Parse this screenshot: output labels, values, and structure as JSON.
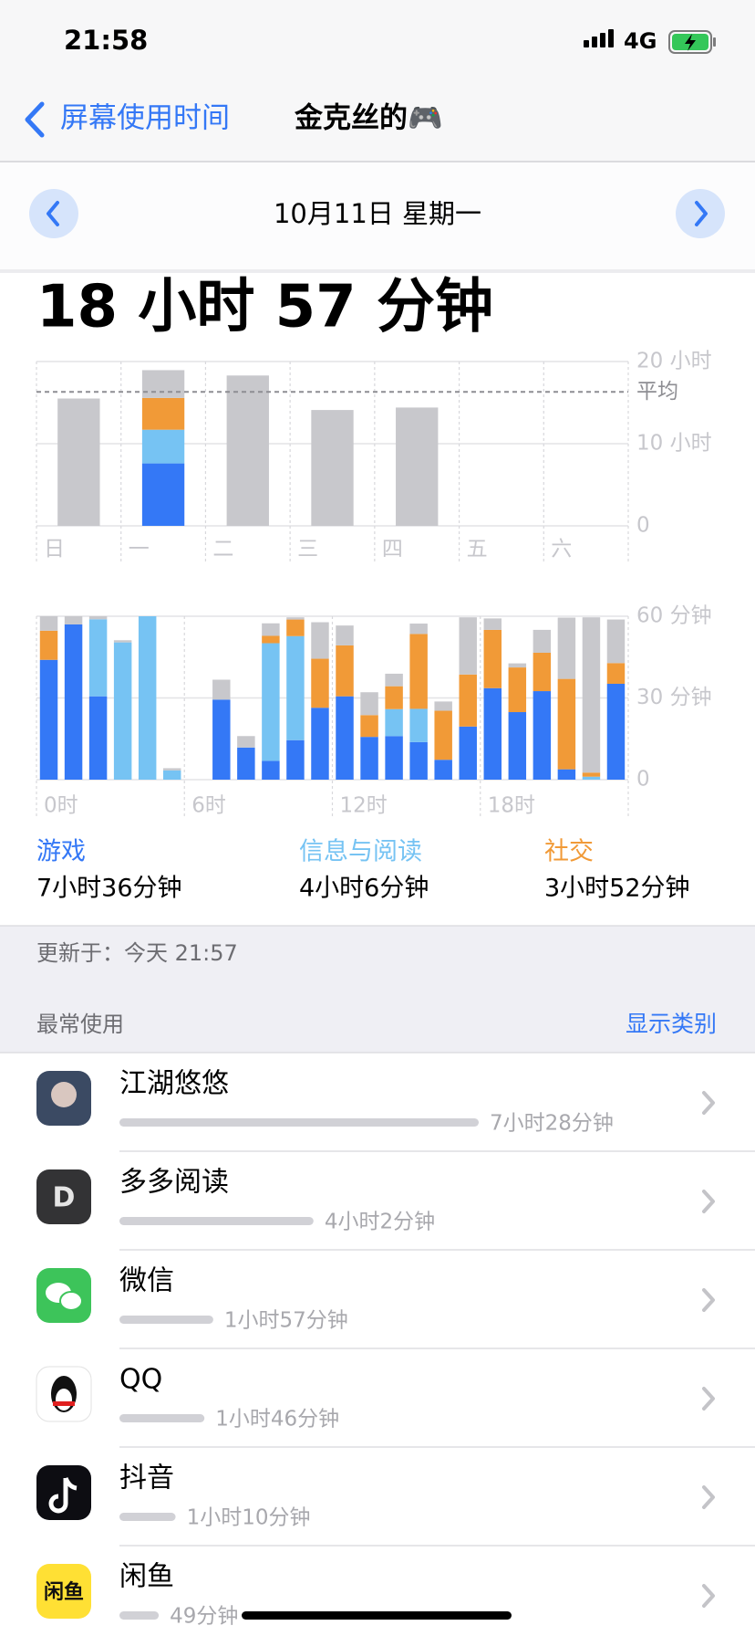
{
  "status_bar": {
    "time": "21:58",
    "network": "4G"
  },
  "nav": {
    "back": "屏幕使用时间",
    "title": "金克丝的🎮"
  },
  "date": "10月11日 星期一",
  "total": "18 小时 57 分钟",
  "chart_data": [
    {
      "type": "bar",
      "stacked": true,
      "categories": [
        "日",
        "一",
        "二",
        "三",
        "四",
        "五",
        "六"
      ],
      "series": [
        {
          "name": "游戏",
          "color": "#3478f6",
          "values": [
            null,
            7.6,
            null,
            null,
            null,
            null,
            null
          ]
        },
        {
          "name": "信息与阅读",
          "color": "#76c3f3",
          "values": [
            null,
            4.1,
            null,
            null,
            null,
            null,
            null
          ]
        },
        {
          "name": "社交",
          "color": "#f19a37",
          "values": [
            null,
            3.87,
            null,
            null,
            null,
            null,
            null
          ]
        },
        {
          "color": "#c8c8cc",
          "values": [
            15.5,
            3.38,
            18.3,
            14.1,
            14.4,
            null,
            null
          ]
        }
      ],
      "ylim": [
        0,
        20
      ],
      "yticks": [
        0,
        {
          "value": 10,
          "label": "10 小时"
        },
        {
          "value": 20,
          "label": "20 小时"
        }
      ],
      "average": 16.3,
      "average_label": "平均",
      "grid": true
    },
    {
      "type": "bar",
      "stacked": true,
      "categories": [
        "0时",
        null,
        null,
        null,
        null,
        null,
        "6时",
        null,
        null,
        null,
        null,
        null,
        "12时",
        null,
        null,
        null,
        null,
        null,
        "18时",
        null,
        null,
        null,
        null,
        null
      ],
      "series": [
        {
          "name": "游戏",
          "color": "#3478f6",
          "values": [
            44,
            57,
            30.6,
            null,
            null,
            null,
            null,
            29.4,
            11.8,
            6.9,
            14.5,
            26.4,
            30.6,
            15.7,
            16,
            13.8,
            7.3,
            19.5,
            33.6,
            24.8,
            32.5,
            3.8,
            null,
            35.2
          ]
        },
        {
          "name": "信息与阅读",
          "color": "#76c3f3",
          "values": [
            null,
            null,
            28.3,
            50.4,
            60,
            3.4,
            null,
            null,
            null,
            43.2,
            38.2,
            null,
            null,
            null,
            9.9,
            12.2,
            null,
            null,
            null,
            null,
            null,
            null,
            1.1,
            null
          ]
        },
        {
          "name": "社交",
          "color": "#f19a37",
          "values": [
            10.7,
            null,
            null,
            null,
            null,
            null,
            null,
            null,
            null,
            2.7,
            6.1,
            18,
            18.7,
            8,
            8.4,
            27.5,
            18,
            19.1,
            21.4,
            16.4,
            14.1,
            33.2,
            1.5,
            7.6
          ]
        },
        {
          "color": "#c8c8cc",
          "values": [
            5.3,
            3,
            1.1,
            0.8,
            null,
            0.8,
            null,
            7.3,
            4.2,
            4.6,
            0.8,
            13.4,
            7.3,
            8.4,
            4.6,
            3.8,
            3.4,
            21,
            4.2,
            1.5,
            8.4,
            22.5,
            57,
            16
          ]
        }
      ],
      "ylim": [
        0,
        60
      ],
      "yticks": [
        0,
        {
          "value": 30,
          "label": "30 分钟"
        },
        {
          "value": 60,
          "label": "60 分钟"
        }
      ],
      "grid": true
    }
  ],
  "category_summary": [
    {
      "name": "游戏",
      "time": "7小时36分钟"
    },
    {
      "name": "信息与阅读",
      "time": "4小时6分钟"
    },
    {
      "name": "社交",
      "time": "3小时52分钟"
    }
  ],
  "updated": "更新于：今天 21:57",
  "most_used": {
    "title": "最常使用",
    "action": "显示类别",
    "apps": [
      {
        "name": "江湖悠悠",
        "time": "7小时28分钟"
      },
      {
        "name": "多多阅读",
        "time": "4小时2分钟",
        "icon_text": "D"
      },
      {
        "name": "微信",
        "time": "1小时57分钟"
      },
      {
        "name": "QQ",
        "time": "1小时46分钟"
      },
      {
        "name": "抖音",
        "time": "1小时10分钟"
      },
      {
        "name": "闲鱼",
        "time": "49分钟",
        "icon_text": "闲鱼"
      }
    ]
  }
}
